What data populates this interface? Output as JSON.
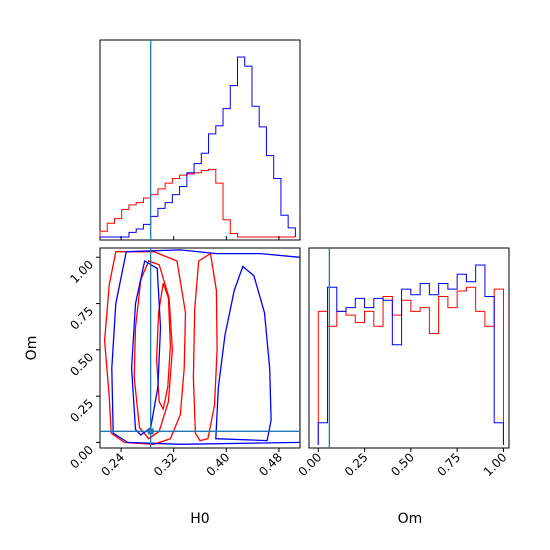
{
  "chart_data": {
    "type": "corner",
    "parameters": [
      "H0",
      "Om"
    ],
    "truth": {
      "H0": 0.285,
      "Om": 0.06
    },
    "colors": {
      "series_red": "#ff0000",
      "series_blue": "#0000ff",
      "truth": "#1f77b4"
    },
    "h0_marginal": {
      "xlim": [
        0.208,
        0.512
      ],
      "bins": [
        0.208,
        0.219,
        0.23,
        0.241,
        0.252,
        0.263,
        0.274,
        0.285,
        0.296,
        0.307,
        0.318,
        0.329,
        0.34,
        0.351,
        0.362,
        0.373,
        0.384,
        0.395,
        0.406,
        0.417,
        0.428,
        0.439,
        0.45,
        0.461,
        0.472,
        0.483,
        0.494,
        0.505
      ],
      "red_counts": [
        5,
        12,
        16,
        24,
        28,
        30,
        34,
        37,
        42,
        47,
        51,
        54,
        55,
        56,
        58,
        59,
        47,
        15,
        3,
        0,
        0,
        0,
        0,
        0,
        0,
        0,
        0
      ],
      "blue_counts": [
        0,
        0,
        0,
        0,
        4,
        7,
        11,
        18,
        25,
        30,
        37,
        44,
        56,
        64,
        73,
        90,
        97,
        112,
        132,
        157,
        149,
        114,
        96,
        71,
        51,
        19,
        8
      ]
    },
    "om_marginal": {
      "xlim": [
        -0.05,
        1.03
      ],
      "x_ticks": [
        "0.00",
        "0.25",
        "0.50",
        "0.75",
        "1.00"
      ],
      "x_tick_values": [
        0.0,
        0.25,
        0.5,
        0.75,
        1.0
      ],
      "bins": [
        0.0,
        0.05,
        0.1,
        0.15,
        0.2,
        0.25,
        0.3,
        0.35,
        0.4,
        0.45,
        0.5,
        0.55,
        0.6,
        0.65,
        0.7,
        0.75,
        0.8,
        0.85,
        0.9,
        0.95,
        1.0
      ],
      "red_counts": [
        0.72,
        0.64,
        0.72,
        0.7,
        0.66,
        0.72,
        0.64,
        0.8,
        0.7,
        0.78,
        0.72,
        0.74,
        0.6,
        0.8,
        0.74,
        0.83,
        0.85,
        0.72,
        0.64,
        0.84
      ],
      "blue_counts": [
        0.12,
        0.85,
        0.72,
        0.74,
        0.79,
        0.74,
        0.79,
        0.78,
        0.54,
        0.84,
        0.81,
        0.87,
        0.81,
        0.87,
        0.84,
        0.92,
        0.88,
        0.97,
        0.8,
        0.12
      ]
    },
    "joint": {
      "xlabel": "H0",
      "ylabel": "Om",
      "xlim": [
        0.208,
        0.512
      ],
      "ylim": [
        -0.03,
        1.05
      ],
      "x_ticks": [
        "0.24",
        "0.32",
        "0.40",
        "0.48"
      ],
      "x_tick_values": [
        0.24,
        0.32,
        0.4,
        0.48
      ],
      "y_ticks": [
        "0.00",
        "0.25",
        "0.50",
        "0.75",
        "1.00"
      ],
      "y_tick_values": [
        0.0,
        0.25,
        0.5,
        0.75,
        1.0
      ],
      "red_contours": [
        [
          [
            0.225,
            0.05
          ],
          [
            0.222,
            0.25
          ],
          [
            0.215,
            0.55
          ],
          [
            0.222,
            0.85
          ],
          [
            0.232,
            1.03
          ],
          [
            0.29,
            1.03
          ],
          [
            0.325,
            0.98
          ],
          [
            0.338,
            0.7
          ],
          [
            0.336,
            0.4
          ],
          [
            0.33,
            0.15
          ],
          [
            0.315,
            0.02
          ],
          [
            0.29,
            -0.01
          ],
          [
            0.245,
            0.0
          ],
          [
            0.225,
            0.05
          ]
        ],
        [
          [
            0.268,
            0.08
          ],
          [
            0.26,
            0.35
          ],
          [
            0.262,
            0.62
          ],
          [
            0.27,
            0.88
          ],
          [
            0.282,
            0.98
          ],
          [
            0.298,
            0.96
          ],
          [
            0.313,
            0.78
          ],
          [
            0.318,
            0.5
          ],
          [
            0.312,
            0.22
          ],
          [
            0.298,
            0.06
          ],
          [
            0.282,
            0.02
          ],
          [
            0.268,
            0.08
          ]
        ],
        [
          [
            0.298,
            0.22
          ],
          [
            0.294,
            0.45
          ],
          [
            0.297,
            0.7
          ],
          [
            0.304,
            0.86
          ],
          [
            0.312,
            0.78
          ],
          [
            0.315,
            0.52
          ],
          [
            0.311,
            0.3
          ],
          [
            0.304,
            0.18
          ],
          [
            0.298,
            0.22
          ]
        ],
        [
          [
            0.353,
            0.05
          ],
          [
            0.35,
            0.35
          ],
          [
            0.352,
            0.72
          ],
          [
            0.358,
            0.98
          ],
          [
            0.376,
            1.02
          ],
          [
            0.385,
            0.82
          ],
          [
            0.386,
            0.5
          ],
          [
            0.382,
            0.2
          ],
          [
            0.372,
            0.02
          ],
          [
            0.36,
            0.01
          ],
          [
            0.353,
            0.05
          ]
        ]
      ],
      "blue_contours": [
        [
          [
            0.228,
            0.05
          ],
          [
            0.226,
            0.4
          ],
          [
            0.232,
            0.75
          ],
          [
            0.248,
            1.03
          ],
          [
            0.33,
            1.04
          ],
          [
            0.385,
            1.02
          ],
          [
            0.452,
            1.02
          ],
          [
            0.512,
            1.0
          ],
          [
            0.512,
            0.0
          ],
          [
            0.33,
            -0.01
          ],
          [
            0.25,
            0.0
          ],
          [
            0.228,
            0.05
          ]
        ],
        [
          [
            0.262,
            0.07
          ],
          [
            0.256,
            0.4
          ],
          [
            0.262,
            0.75
          ],
          [
            0.276,
            0.98
          ],
          [
            0.295,
            0.94
          ],
          [
            0.3,
            0.62
          ],
          [
            0.296,
            0.3
          ],
          [
            0.285,
            0.08
          ],
          [
            0.27,
            0.04
          ],
          [
            0.262,
            0.07
          ]
        ],
        [
          [
            0.384,
            0.02
          ],
          [
            0.388,
            0.3
          ],
          [
            0.398,
            0.58
          ],
          [
            0.412,
            0.82
          ],
          [
            0.425,
            0.95
          ],
          [
            0.442,
            0.9
          ],
          [
            0.458,
            0.7
          ],
          [
            0.466,
            0.4
          ],
          [
            0.468,
            0.12
          ],
          [
            0.462,
            0.01
          ],
          [
            0.384,
            0.02
          ]
        ]
      ]
    }
  }
}
